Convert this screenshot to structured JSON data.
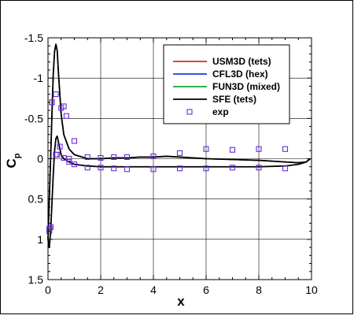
{
  "chart_data": {
    "type": "line",
    "title": "",
    "xlabel": "x",
    "ylabel": "C",
    "ylabel_subscript": "p",
    "xlim": [
      0,
      10
    ],
    "ylim": [
      1.5,
      -1.5
    ],
    "y_inverted": true,
    "grid": true,
    "legend_position": "top-right",
    "x_ticks": [
      "0",
      "2",
      "4",
      "6",
      "8",
      "10"
    ],
    "y_ticks": [
      "-1.5",
      "-1",
      "-0.5",
      "0",
      "0.5",
      "1",
      "1.5"
    ],
    "series": [
      {
        "name": "USM3D (tets)",
        "color": "#d62828",
        "style": "line",
        "x": [
          0,
          0.05,
          0.1,
          0.15,
          0.2,
          0.25,
          0.3,
          0.35,
          0.4,
          0.5,
          0.6,
          0.8,
          1,
          1.5,
          2,
          2.5,
          3,
          3.5,
          4,
          4.5,
          5,
          6,
          7,
          8,
          9,
          9.5,
          9.8,
          9.95
        ],
        "y": [
          1.0,
          0.5,
          0.0,
          -0.55,
          -1.05,
          -1.33,
          -1.42,
          -1.34,
          -1.05,
          -0.55,
          -0.3,
          -0.12,
          -0.05,
          0.0,
          0.0,
          -0.01,
          -0.01,
          -0.02,
          -0.02,
          -0.03,
          -0.02,
          0.0,
          0.01,
          0.02,
          0.04,
          0.05,
          0.04,
          0.0
        ]
      },
      {
        "name": "CFL3D (hex)",
        "color": "#1f3bd6",
        "style": "line",
        "x": [
          0,
          0.05,
          0.1,
          0.15,
          0.2,
          0.25,
          0.3,
          0.35,
          0.4,
          0.5,
          0.6,
          0.8,
          1,
          1.5,
          2,
          2.5,
          3,
          3.5,
          4,
          4.5,
          5,
          6,
          7,
          8,
          9,
          9.5,
          9.8,
          9.95
        ],
        "y": [
          1.0,
          0.5,
          0.0,
          -0.55,
          -1.05,
          -1.33,
          -1.42,
          -1.34,
          -1.05,
          -0.55,
          -0.3,
          -0.12,
          -0.05,
          0.0,
          0.0,
          -0.01,
          -0.01,
          -0.02,
          -0.02,
          -0.03,
          -0.02,
          0.0,
          0.01,
          0.02,
          0.04,
          0.05,
          0.04,
          0.0
        ]
      },
      {
        "name": "FUN3D (mixed)",
        "color": "#1aa33a",
        "style": "line",
        "x": [
          0,
          0.05,
          0.1,
          0.15,
          0.2,
          0.25,
          0.3,
          0.35,
          0.4,
          0.5,
          0.6,
          0.8,
          1,
          1.5,
          2,
          2.5,
          3,
          3.5,
          4,
          4.5,
          5,
          6,
          7,
          8,
          9,
          9.5,
          9.8,
          9.95
        ],
        "y": [
          1.0,
          0.5,
          0.0,
          -0.55,
          -1.05,
          -1.33,
          -1.42,
          -1.34,
          -1.05,
          -0.55,
          -0.3,
          -0.12,
          -0.05,
          0.0,
          0.0,
          -0.01,
          -0.01,
          -0.02,
          -0.02,
          -0.03,
          -0.02,
          0.0,
          0.01,
          0.02,
          0.04,
          0.05,
          0.04,
          0.0
        ]
      },
      {
        "name": "SFE (tets)",
        "color": "#000000",
        "style": "line",
        "x": [
          0,
          0.05,
          0.1,
          0.15,
          0.2,
          0.25,
          0.3,
          0.35,
          0.4,
          0.5,
          0.6,
          0.8,
          1,
          1.5,
          2,
          2.5,
          3,
          3.5,
          4,
          4.5,
          5,
          6,
          7,
          8,
          9,
          9.5,
          9.8,
          9.95
        ],
        "y": [
          1.0,
          0.5,
          0.0,
          -0.55,
          -1.05,
          -1.33,
          -1.42,
          -1.34,
          -1.05,
          -0.55,
          -0.3,
          -0.12,
          -0.05,
          0.0,
          0.0,
          -0.01,
          -0.01,
          -0.02,
          -0.02,
          -0.03,
          -0.02,
          0.0,
          0.01,
          0.02,
          0.04,
          0.05,
          0.04,
          0.0
        ]
      },
      {
        "name": "",
        "color": "#000000",
        "style": "line",
        "x": [
          0,
          0.05,
          0.1,
          0.15,
          0.2,
          0.25,
          0.3,
          0.35,
          0.4,
          0.5,
          0.6,
          0.8,
          1,
          1.5,
          2,
          3,
          4,
          5,
          6,
          7,
          8,
          9,
          9.5,
          9.8,
          9.95
        ],
        "y": [
          1.0,
          1.1,
          0.9,
          0.55,
          0.2,
          -0.1,
          -0.25,
          -0.28,
          -0.2,
          -0.05,
          0.0,
          0.04,
          0.07,
          0.09,
          0.1,
          0.1,
          0.1,
          0.1,
          0.1,
          0.1,
          0.1,
          0.09,
          0.07,
          0.04,
          0.0
        ]
      },
      {
        "name": "exp",
        "color": "#6a2bd8",
        "style": "marker",
        "x": [
          0.05,
          0.1,
          0.15,
          0.3,
          0.35,
          0.5,
          0.6,
          0.7,
          0.8,
          1.0,
          1.5,
          2,
          2.5,
          3,
          4,
          5,
          6,
          7,
          8,
          9,
          0.05,
          0.1,
          0.15,
          0.3,
          0.45,
          0.6,
          0.8,
          1.0,
          1.5,
          2,
          2.5,
          3,
          4,
          5,
          6,
          7,
          8,
          9
        ],
        "y": [
          0.9,
          0.85,
          -0.7,
          -0.8,
          -0.05,
          -0.63,
          -0.65,
          -0.53,
          0.0,
          -0.22,
          -0.02,
          -0.01,
          -0.02,
          -0.02,
          -0.03,
          -0.07,
          -0.12,
          -0.11,
          -0.12,
          -0.12,
          0.87,
          0.85,
          -0.7,
          -0.05,
          -0.15,
          -0.01,
          0.04,
          0.07,
          0.11,
          0.11,
          0.12,
          0.13,
          0.13,
          0.12,
          0.12,
          0.11,
          0.11,
          0.12
        ]
      }
    ]
  }
}
